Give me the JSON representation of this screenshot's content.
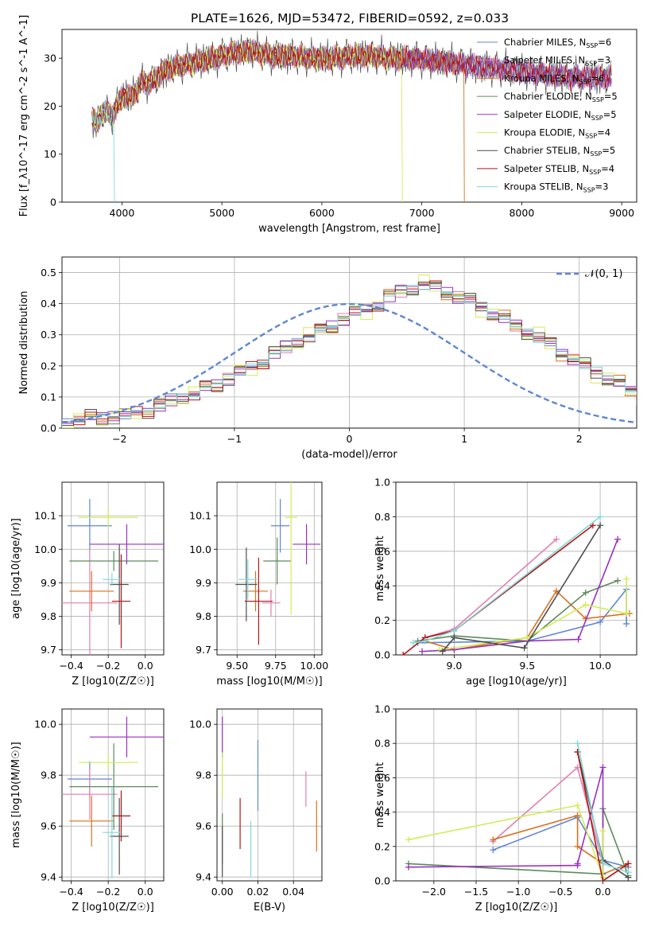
{
  "figure_title": "PLATE=1626, MJD=53472, FIBERID=0592, z=0.033",
  "colors": [
    "#5f86d4",
    "#e27fb0",
    "#d8711f",
    "#5c8a5c",
    "#9a2fc0",
    "#d2ec57",
    "#4f4f4f",
    "#b31414",
    "#7fdad8"
  ],
  "chart_data": [
    {
      "type": "line",
      "title": "PLATE=1626, MJD=53472, FIBERID=0592, z=0.033",
      "xlabel": "wavelength [Angstrom, rest frame]",
      "ylabel": "Flux [f_λ10^-17 erg cm^-2 s^-1 A^-1]",
      "xlim": [
        3400,
        9150
      ],
      "ylim": [
        0,
        36
      ],
      "xticks": [
        "4000",
        "5000",
        "6000",
        "7000",
        "8000",
        "9000"
      ],
      "yticks": [
        "0",
        "10",
        "20",
        "30"
      ],
      "grid": false,
      "legend_position": "top-right",
      "series": [
        {
          "name": "Chabrier MILES, N_SSP=6"
        },
        {
          "name": "Salpeter MILES, N_SSP=3"
        },
        {
          "name": "Kroupa MILES, N_SSP=6"
        },
        {
          "name": "Chabrier ELODIE, N_SSP=5"
        },
        {
          "name": "Salpeter ELODIE, N_SSP=5"
        },
        {
          "name": "Kroupa ELODIE, N_SSP=4"
        },
        {
          "name": "Chabrier STELIB, N_SSP=5"
        },
        {
          "name": "Salpeter STELIB, N_SSP=4"
        },
        {
          "name": "Kroupa STELIB, N_SSP=3"
        }
      ],
      "legend": [
        {
          "model": "Chabrier MILES",
          "nssp": "6"
        },
        {
          "model": "Salpeter MILES",
          "nssp": "3"
        },
        {
          "model": "Kroupa MILES",
          "nssp": "6"
        },
        {
          "model": "Chabrier ELODIE",
          "nssp": "5"
        },
        {
          "model": "Salpeter ELODIE",
          "nssp": "5"
        },
        {
          "model": "Kroupa ELODIE",
          "nssp": "4"
        },
        {
          "model": "Chabrier STELIB",
          "nssp": "5"
        },
        {
          "model": "Salpeter STELIB",
          "nssp": "4"
        },
        {
          "model": "Kroupa STELIB",
          "nssp": "3"
        }
      ],
      "continuum_x": [
        3700,
        3750,
        3800,
        3900,
        4000,
        4100,
        4200,
        4300,
        4400,
        4500,
        4700,
        4900,
        5100,
        5300,
        5500,
        5700,
        5900,
        6100,
        6300,
        6500,
        6700,
        6900,
        7100,
        7300,
        7500,
        7700,
        7900,
        8100,
        8300,
        8500,
        8700,
        8900
      ],
      "continuum_y": [
        18,
        16,
        19,
        18,
        22,
        22,
        25,
        25,
        27,
        28,
        29,
        30,
        31,
        31.5,
        30.5,
        30.5,
        30,
        30,
        30.5,
        30.5,
        30,
        30,
        29.5,
        29,
        28.5,
        28,
        27.5,
        27,
        26.5,
        26,
        26,
        26
      ],
      "model_cutoffs": [
        {
          "series": 2,
          "x_end": 7420
        },
        {
          "series": 5,
          "x_end": 6800
        },
        {
          "series": 8,
          "x_end": 3920
        }
      ]
    },
    {
      "type": "line",
      "xlabel": "(data-model)/error",
      "ylabel": "Normed distribution",
      "xlim": [
        -2.5,
        2.5
      ],
      "ylim": [
        0,
        0.55
      ],
      "xticks": [
        "−2",
        "−1",
        "0",
        "1",
        "2"
      ],
      "yticks": [
        "0.0",
        "0.1",
        "0.2",
        "0.3",
        "0.4",
        "0.5"
      ],
      "grid": true,
      "legend_position": "top-right",
      "legend_label": "𝒩(0, 1)",
      "bin_width": 0.1,
      "bin_start": -2.5,
      "histogram_envelope": [
        0.02,
        0.03,
        0.03,
        0.035,
        0.04,
        0.04,
        0.05,
        0.06,
        0.07,
        0.085,
        0.1,
        0.11,
        0.125,
        0.14,
        0.16,
        0.18,
        0.195,
        0.215,
        0.24,
        0.26,
        0.28,
        0.295,
        0.31,
        0.33,
        0.35,
        0.37,
        0.38,
        0.4,
        0.42,
        0.44,
        0.45,
        0.46,
        0.45,
        0.44,
        0.42,
        0.41,
        0.39,
        0.37,
        0.35,
        0.33,
        0.31,
        0.29,
        0.27,
        0.245,
        0.22,
        0.2,
        0.18,
        0.16,
        0.14,
        0.12,
        0.1
      ],
      "histogram_spread": [
        0.004,
        -0.012,
        0.02,
        -0.018,
        0.01,
        0.025,
        -0.022,
        0.015,
        -0.006
      ]
    },
    {
      "type": "scatter",
      "xlabel": "Z [log10(Z/Z☉)]",
      "ylabel": "age  [log10(age/yr)]",
      "xlim": [
        -0.45,
        0.1
      ],
      "ylim": [
        9.685,
        10.2
      ],
      "xticks": [
        "−0.4",
        "−0.2",
        "0.0"
      ],
      "yticks": [
        "9.7",
        "9.8",
        "9.9",
        "10.0",
        "10.1"
      ],
      "grid": true,
      "points": [
        {
          "series": 0,
          "x": -0.3,
          "y": 10.07,
          "xerr": 0.12,
          "yerr": 0.08
        },
        {
          "series": 1,
          "x": -0.3,
          "y": 9.84,
          "xerr": 0.15,
          "yerr": 0.16
        },
        {
          "series": 2,
          "x": -0.29,
          "y": 9.875,
          "xerr": 0.12,
          "yerr": 0.06
        },
        {
          "series": 3,
          "x": -0.17,
          "y": 9.965,
          "xerr": 0.24,
          "yerr": 0.03
        },
        {
          "series": 4,
          "x": -0.1,
          "y": 10.015,
          "xerr": 0.2,
          "yerr": 0.06
        },
        {
          "series": 5,
          "x": -0.2,
          "y": 10.095,
          "xerr": 0.16,
          "yerr": 0.03
        },
        {
          "series": 6,
          "x": -0.14,
          "y": 9.895,
          "xerr": 0.05,
          "yerr": 0.12
        },
        {
          "series": 7,
          "x": -0.13,
          "y": 9.845,
          "xerr": 0.05,
          "yerr": 0.14
        },
        {
          "series": 8,
          "x": -0.18,
          "y": 9.91,
          "xerr": 0.05,
          "yerr": 0.02
        }
      ]
    },
    {
      "type": "scatter",
      "xlabel": "mass [log10(M/M☉)]",
      "xlim": [
        9.37,
        10.05
      ],
      "ylim": [
        9.685,
        10.2
      ],
      "xticks": [
        "9.50",
        "9.75",
        "10.00"
      ],
      "yticks": [
        "9.7",
        "9.8",
        "9.9",
        "10.0",
        "10.1"
      ],
      "grid": true,
      "points": [
        {
          "series": 0,
          "x": 9.78,
          "y": 10.07,
          "xerr": 0.06,
          "yerr": 0.08
        },
        {
          "series": 1,
          "x": 9.72,
          "y": 9.84,
          "xerr": 0.06,
          "yerr": 0.04
        },
        {
          "series": 2,
          "x": 9.62,
          "y": 9.875,
          "xerr": 0.08,
          "yerr": 0.06
        },
        {
          "series": 3,
          "x": 9.76,
          "y": 9.965,
          "xerr": 0.09,
          "yerr": 0.07
        },
        {
          "series": 4,
          "x": 9.95,
          "y": 10.015,
          "xerr": 0.09,
          "yerr": 0.06
        },
        {
          "series": 5,
          "x": 9.85,
          "y": 10.095,
          "xerr": 0.04,
          "yerr": 0.29
        },
        {
          "series": 6,
          "x": 9.56,
          "y": 9.895,
          "xerr": 0.07,
          "yerr": 0.11
        },
        {
          "series": 7,
          "x": 9.64,
          "y": 9.845,
          "xerr": 0.09,
          "yerr": 0.13
        },
        {
          "series": 8,
          "x": 9.57,
          "y": 9.91,
          "xerr": 0.06,
          "yerr": 0.06
        }
      ]
    },
    {
      "type": "line",
      "xlabel": "age  [log10(age/yr)]",
      "ylabel": "mass weight",
      "xlim": [
        8.6,
        10.25
      ],
      "ylim": [
        0,
        1
      ],
      "xticks": [
        "9.0",
        "9.5",
        "10.0"
      ],
      "yticks": [
        "0.0",
        "0.2",
        "0.4",
        "0.6",
        "0.8",
        "1.0"
      ],
      "grid": true,
      "series": [
        {
          "series": 0,
          "x": [
            8.75,
            9.5,
            10.0,
            10.18,
            10.18
          ],
          "y": [
            0.07,
            0.08,
            0.19,
            0.38,
            0.18
          ]
        },
        {
          "series": 1,
          "x": [
            8.8,
            9.0,
            9.7
          ],
          "y": [
            0.1,
            0.15,
            0.67
          ]
        },
        {
          "series": 2,
          "x": [
            8.8,
            9.0,
            9.5,
            9.7,
            9.9,
            10.2
          ],
          "y": [
            0.08,
            0.03,
            0.1,
            0.37,
            0.21,
            0.24
          ]
        },
        {
          "series": 3,
          "x": [
            8.75,
            9.0,
            9.5,
            9.9,
            10.12
          ],
          "y": [
            0.08,
            0.11,
            0.08,
            0.36,
            0.43
          ]
        },
        {
          "series": 4,
          "x": [
            8.78,
            9.0,
            9.5,
            9.85,
            10.12
          ],
          "y": [
            0.02,
            0.03,
            0.08,
            0.09,
            0.67
          ]
        },
        {
          "series": 5,
          "x": [
            8.9,
            9.5,
            9.9,
            10.18,
            10.18
          ],
          "y": [
            0.03,
            0.1,
            0.29,
            0.24,
            0.44
          ]
        },
        {
          "series": 6,
          "x": [
            8.92,
            9.0,
            9.48,
            10.0
          ],
          "y": [
            0.02,
            0.1,
            0.04,
            0.75
          ]
        },
        {
          "series": 7,
          "x": [
            8.65,
            8.8,
            9.0,
            9.95
          ],
          "y": [
            0.0,
            0.1,
            0.14,
            0.75
          ]
        },
        {
          "series": 8,
          "x": [
            8.72,
            8.8,
            9.0,
            10.0
          ],
          "y": [
            0.07,
            0.08,
            0.14,
            0.8
          ]
        }
      ]
    },
    {
      "type": "scatter",
      "xlabel": "Z [log10(Z/Z☉)]",
      "ylabel": "mass [log10(M/M☉)]",
      "xlim": [
        -0.45,
        0.1
      ],
      "ylim": [
        9.385,
        10.06
      ],
      "xticks": [
        "−0.4",
        "−0.2",
        "0.0"
      ],
      "yticks": [
        "9.4",
        "9.6",
        "9.8",
        "10.0"
      ],
      "grid": true,
      "points": [
        {
          "series": 0,
          "x": -0.3,
          "y": 9.785,
          "xerr": 0.12,
          "yerr": 0.07
        },
        {
          "series": 1,
          "x": -0.3,
          "y": 9.725,
          "xerr": 0.15,
          "yerr": 0.1
        },
        {
          "series": 2,
          "x": -0.29,
          "y": 9.62,
          "xerr": 0.12,
          "yerr": 0.1
        },
        {
          "series": 3,
          "x": -0.17,
          "y": 9.755,
          "xerr": 0.24,
          "yerr": 0.17
        },
        {
          "series": 4,
          "x": -0.1,
          "y": 9.95,
          "xerr": 0.2,
          "yerr": 0.08
        },
        {
          "series": 5,
          "x": -0.2,
          "y": 9.85,
          "xerr": 0.16,
          "yerr": 0.03
        },
        {
          "series": 6,
          "x": -0.14,
          "y": 9.56,
          "xerr": 0.05,
          "yerr": 0.15
        },
        {
          "series": 7,
          "x": -0.13,
          "y": 9.64,
          "xerr": 0.05,
          "yerr": 0.1
        },
        {
          "series": 8,
          "x": -0.18,
          "y": 9.575,
          "xerr": 0.05,
          "yerr": 0.18
        }
      ]
    },
    {
      "type": "scatter",
      "xlabel": "E(B-V)",
      "xlim": [
        -0.003,
        0.056
      ],
      "ylim": [
        9.385,
        10.06
      ],
      "xticks": [
        "0.00",
        "0.02",
        "0.04"
      ],
      "yticks": [
        "9.4",
        "9.6",
        "9.8",
        "10.0"
      ],
      "grid": true,
      "points": [
        {
          "series": 0,
          "x": 0.02,
          "y": 9.8,
          "yerr": 0.14
        },
        {
          "series": 1,
          "x": 0.047,
          "y": 9.745,
          "yerr": 0.07
        },
        {
          "series": 2,
          "x": 0.053,
          "y": 9.6,
          "yerr": 0.1
        },
        {
          "series": 3,
          "x": 0.0,
          "y": 9.55,
          "yerr": 0.1
        },
        {
          "series": 4,
          "x": 0.0,
          "y": 9.95,
          "yerr": 0.08
        },
        {
          "series": 5,
          "x": 0.0,
          "y": 9.8,
          "yerr": 0.09
        },
        {
          "series": 6,
          "x": 0.0,
          "y": 9.5,
          "yerr": 0.1
        },
        {
          "series": 7,
          "x": 0.01,
          "y": 9.61,
          "yerr": 0.1
        },
        {
          "series": 8,
          "x": 0.016,
          "y": 9.51,
          "yerr": 0.11
        }
      ]
    },
    {
      "type": "line",
      "xlabel": "Z [log10(Z/Z☉)]",
      "ylabel": "mass weight",
      "xlim": [
        -2.45,
        0.4
      ],
      "ylim": [
        0,
        1
      ],
      "xticks": [
        "−2.0",
        "−1.5",
        "−1.0",
        "−0.5",
        "0.0"
      ],
      "yticks": [
        "0.0",
        "0.2",
        "0.4",
        "0.6",
        "0.8",
        "1.0"
      ],
      "grid": true,
      "series": [
        {
          "series": 0,
          "x": [
            -1.3,
            -0.3,
            0.0,
            0.3
          ],
          "y": [
            0.18,
            0.37,
            0.12,
            0.08
          ]
        },
        {
          "series": 1,
          "x": [
            -1.3,
            -0.3,
            0.0
          ],
          "y": [
            0.23,
            0.66,
            0.1
          ]
        },
        {
          "series": 2,
          "x": [
            -1.3,
            -0.3,
            -0.3,
            0.0,
            0.0,
            0.3
          ],
          "y": [
            0.24,
            0.38,
            0.2,
            0.1,
            0.04,
            0.1
          ]
        },
        {
          "series": 3,
          "x": [
            -2.3,
            0.0,
            0.0,
            0.3
          ],
          "y": [
            0.1,
            0.04,
            0.42,
            0.03
          ]
        },
        {
          "series": 4,
          "x": [
            -2.3,
            -0.3,
            -0.3,
            0.0,
            0.0
          ],
          "y": [
            0.08,
            0.09,
            0.1,
            0.66,
            0.02
          ]
        },
        {
          "series": 5,
          "x": [
            -2.3,
            -0.3,
            0.0,
            0.0
          ],
          "y": [
            0.24,
            0.44,
            0.02,
            0.29
          ]
        },
        {
          "series": 6,
          "x": [
            -0.3,
            0.0,
            0.3
          ],
          "y": [
            0.75,
            0.12,
            0.02
          ]
        },
        {
          "series": 7,
          "x": [
            -0.3,
            0.0,
            0.3
          ],
          "y": [
            0.75,
            0.0,
            0.1
          ]
        },
        {
          "series": 8,
          "x": [
            -0.3,
            0.0,
            0.3
          ],
          "y": [
            0.8,
            0.1,
            0.05
          ]
        }
      ]
    }
  ]
}
